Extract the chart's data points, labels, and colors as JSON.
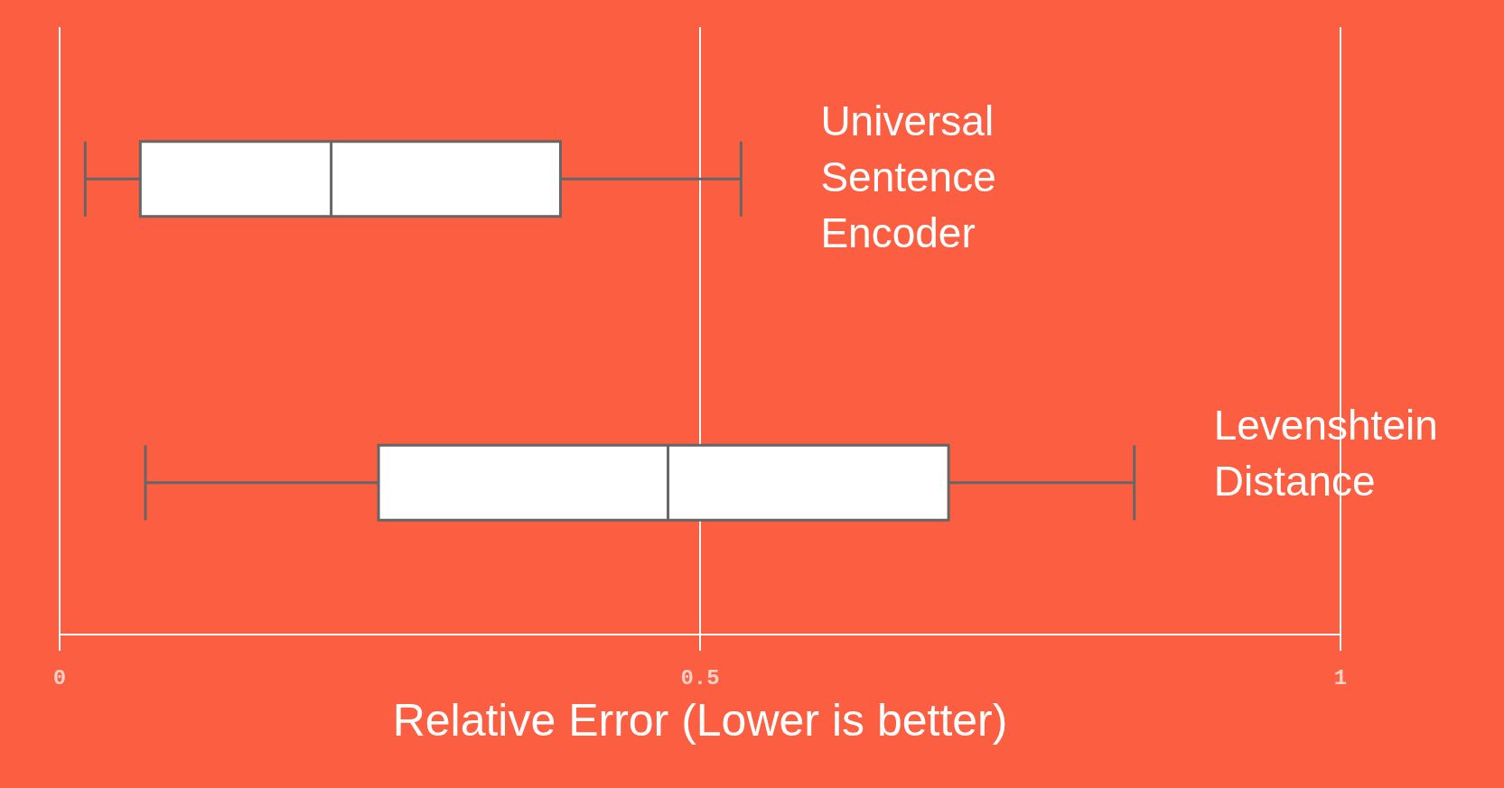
{
  "chart_data": {
    "type": "box",
    "orientation": "horizontal",
    "xlabel": "Relative Error (Lower is better)",
    "categories": [
      "Universal Sentence Encoder",
      "Levenshtein Distance"
    ],
    "series": [
      {
        "color": "#ffffff",
        "boxes": [
          {
            "low": 0.02,
            "q1": 0.063,
            "median": 0.212,
            "q3": 0.391,
            "high": 0.532
          },
          {
            "low": 0.067,
            "q1": 0.249,
            "median": 0.475,
            "q3": 0.694,
            "high": 0.839
          }
        ]
      }
    ],
    "xlim": [
      0,
      1
    ],
    "xticks": [
      0,
      0.5,
      1
    ],
    "grid": "x"
  }
}
